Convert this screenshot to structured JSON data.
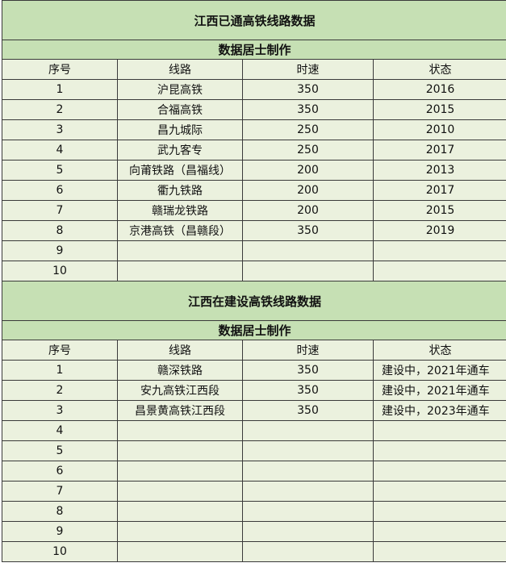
{
  "colors": {
    "header_bg": "#c6e0b4",
    "row_bg": "#ebf1de",
    "border": "#3a3a3a"
  },
  "sections": [
    {
      "title": "江西已通高铁线路数据",
      "subtitle": "数据居士制作",
      "columns": [
        "序号",
        "线路",
        "时速",
        "状态"
      ],
      "rows": [
        [
          "1",
          "沪昆高铁",
          "350",
          "2016"
        ],
        [
          "2",
          "合福高铁",
          "350",
          "2015"
        ],
        [
          "3",
          "昌九城际",
          "250",
          "2010"
        ],
        [
          "4",
          "武九客专",
          "250",
          "2017"
        ],
        [
          "5",
          "向莆铁路（昌福线）",
          "200",
          "2013"
        ],
        [
          "6",
          "衢九铁路",
          "200",
          "2017"
        ],
        [
          "7",
          "赣瑞龙铁路",
          "200",
          "2015"
        ],
        [
          "8",
          "京港高铁（昌赣段）",
          "350",
          "2019"
        ],
        [
          "9",
          "",
          "",
          ""
        ],
        [
          "10",
          "",
          "",
          ""
        ]
      ]
    },
    {
      "title": "江西在建设高铁线路数据",
      "subtitle": "数据居士制作",
      "columns": [
        "序号",
        "线路",
        "时速",
        "状态"
      ],
      "rows": [
        [
          "1",
          "赣深铁路",
          "350",
          "建设中，2021年通车"
        ],
        [
          "2",
          "安九高铁江西段",
          "350",
          "建设中，2021年通车"
        ],
        [
          "3",
          "昌景黄高铁江西段",
          "350",
          "建设中，2023年通车"
        ],
        [
          "4",
          "",
          "",
          ""
        ],
        [
          "5",
          "",
          "",
          ""
        ],
        [
          "6",
          "",
          "",
          ""
        ],
        [
          "7",
          "",
          "",
          ""
        ],
        [
          "8",
          "",
          "",
          ""
        ],
        [
          "9",
          "",
          "",
          ""
        ],
        [
          "10",
          "",
          "",
          ""
        ]
      ]
    }
  ]
}
